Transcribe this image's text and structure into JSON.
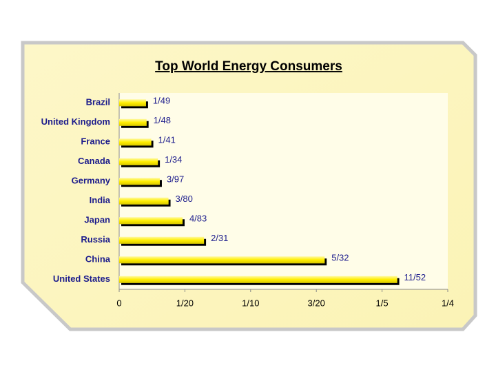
{
  "chart_data": {
    "type": "bar",
    "orientation": "horizontal",
    "title": "Top World Energy Consumers",
    "categories": [
      "Brazil",
      "United Kingdom",
      "France",
      "Canada",
      "Germany",
      "India",
      "Japan",
      "Russia",
      "China",
      "United States"
    ],
    "values": [
      0.0204,
      0.0208,
      0.0244,
      0.0294,
      0.0309,
      0.0375,
      0.0482,
      0.0645,
      0.1563,
      0.2115
    ],
    "value_labels": [
      "1/49",
      "1/48",
      "1/41",
      "1/34",
      "3/97",
      "3/80",
      "4/83",
      "2/31",
      "5/32",
      "11/52"
    ],
    "color": "#ffee00",
    "xlim": [
      0,
      0.25
    ],
    "xticks": [
      0,
      {
        "value": 0.05,
        "label": "1/20"
      },
      {
        "value": 0.1,
        "label": "1/10"
      },
      {
        "value": 0.15,
        "label": "3/20"
      },
      {
        "value": 0.2,
        "label": "1/5"
      },
      {
        "value": 0.25,
        "label": "1/4"
      }
    ]
  }
}
